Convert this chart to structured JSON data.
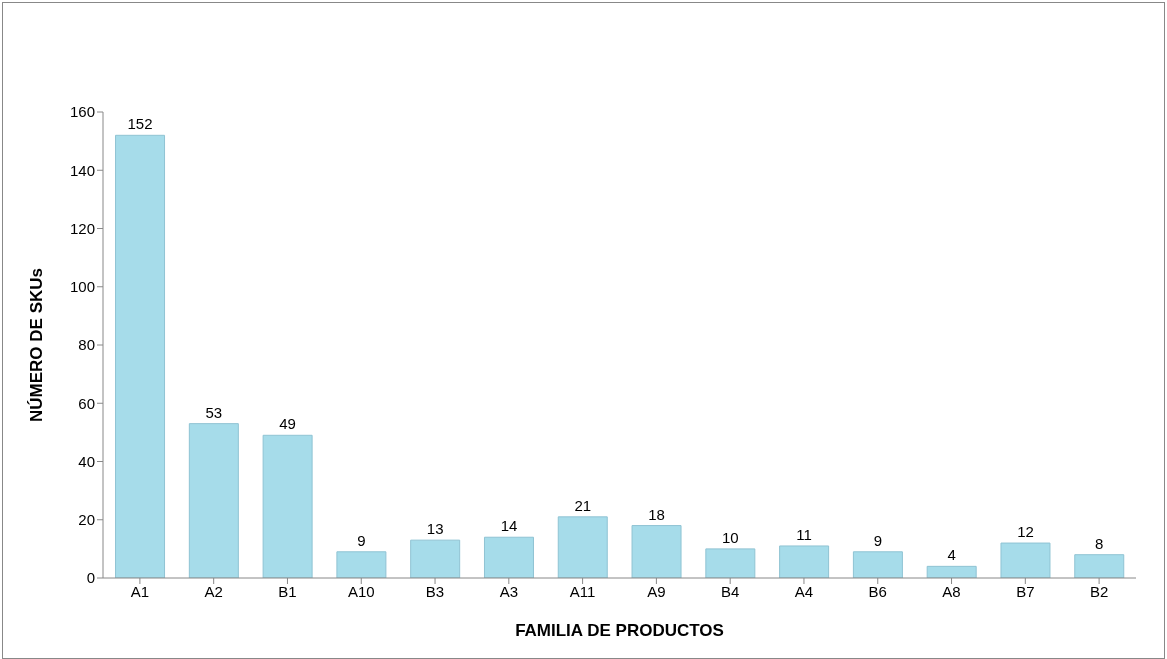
{
  "chart_data": {
    "type": "bar",
    "xlabel": "FAMILIA DE PRODUCTOS",
    "ylabel": "NÚMERO DE SKUs",
    "categories": [
      "A1",
      "A2",
      "B1",
      "A10",
      "B3",
      "A3",
      "A11",
      "A9",
      "B4",
      "A4",
      "B6",
      "A8",
      "B7",
      "B2"
    ],
    "values": [
      152,
      53,
      49,
      9,
      13,
      14,
      21,
      18,
      10,
      11,
      9,
      4,
      12,
      8
    ],
    "color": "#a6dcea",
    "ylim": [
      0,
      160
    ],
    "yticks": [
      0,
      20,
      40,
      60,
      80,
      100,
      120,
      140,
      160
    ],
    "grid": false,
    "data_labels": true
  }
}
